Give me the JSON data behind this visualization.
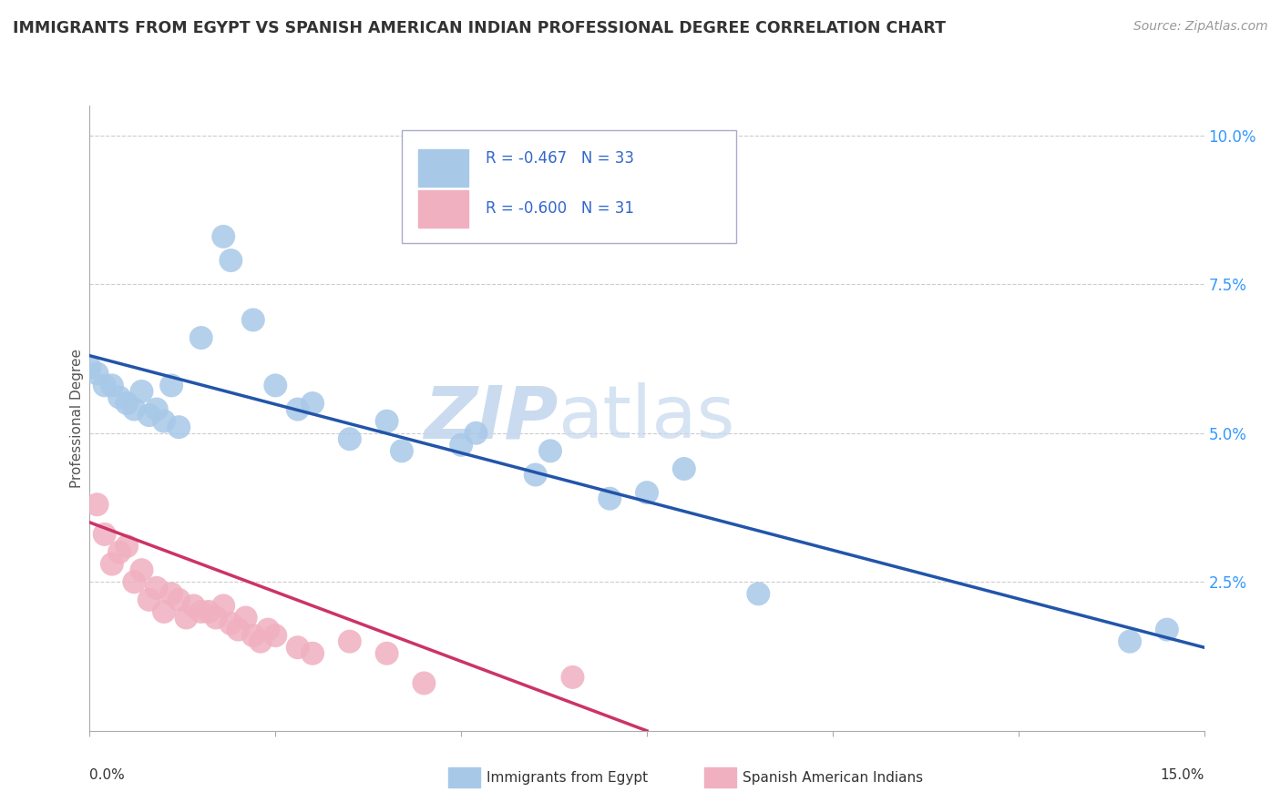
{
  "title": "IMMIGRANTS FROM EGYPT VS SPANISH AMERICAN INDIAN PROFESSIONAL DEGREE CORRELATION CHART",
  "source": "Source: ZipAtlas.com",
  "ylabel": "Professional Degree",
  "yticks_right": [
    0.0,
    0.025,
    0.05,
    0.075,
    0.1
  ],
  "ytick_labels_right": [
    "",
    "2.5%",
    "5.0%",
    "7.5%",
    "10.0%"
  ],
  "xlim": [
    0.0,
    0.15
  ],
  "ylim": [
    0.0,
    0.105
  ],
  "legend_r1": "R = -0.467   N = 33",
  "legend_r2": "R = -0.600   N = 31",
  "legend_label1": "Immigrants from Egypt",
  "legend_label2": "Spanish American Indians",
  "blue_color": "#a8c8e8",
  "pink_color": "#f0b0c0",
  "blue_line_color": "#2255aa",
  "pink_line_color": "#cc3366",
  "blue_dots": [
    [
      0.001,
      0.06
    ],
    [
      0.002,
      0.058
    ],
    [
      0.003,
      0.058
    ],
    [
      0.004,
      0.056
    ],
    [
      0.005,
      0.055
    ],
    [
      0.006,
      0.054
    ],
    [
      0.007,
      0.057
    ],
    [
      0.008,
      0.053
    ],
    [
      0.009,
      0.054
    ],
    [
      0.01,
      0.052
    ],
    [
      0.011,
      0.058
    ],
    [
      0.012,
      0.051
    ],
    [
      0.0,
      0.061
    ],
    [
      0.015,
      0.066
    ],
    [
      0.018,
      0.083
    ],
    [
      0.019,
      0.079
    ],
    [
      0.022,
      0.069
    ],
    [
      0.025,
      0.058
    ],
    [
      0.028,
      0.054
    ],
    [
      0.03,
      0.055
    ],
    [
      0.035,
      0.049
    ],
    [
      0.04,
      0.052
    ],
    [
      0.042,
      0.047
    ],
    [
      0.05,
      0.048
    ],
    [
      0.052,
      0.05
    ],
    [
      0.06,
      0.043
    ],
    [
      0.062,
      0.047
    ],
    [
      0.07,
      0.039
    ],
    [
      0.075,
      0.04
    ],
    [
      0.08,
      0.044
    ],
    [
      0.09,
      0.023
    ],
    [
      0.14,
      0.015
    ],
    [
      0.145,
      0.017
    ]
  ],
  "pink_dots": [
    [
      0.001,
      0.038
    ],
    [
      0.002,
      0.033
    ],
    [
      0.003,
      0.028
    ],
    [
      0.004,
      0.03
    ],
    [
      0.005,
      0.031
    ],
    [
      0.006,
      0.025
    ],
    [
      0.007,
      0.027
    ],
    [
      0.008,
      0.022
    ],
    [
      0.009,
      0.024
    ],
    [
      0.01,
      0.02
    ],
    [
      0.011,
      0.023
    ],
    [
      0.012,
      0.022
    ],
    [
      0.013,
      0.019
    ],
    [
      0.014,
      0.021
    ],
    [
      0.015,
      0.02
    ],
    [
      0.016,
      0.02
    ],
    [
      0.017,
      0.019
    ],
    [
      0.018,
      0.021
    ],
    [
      0.019,
      0.018
    ],
    [
      0.02,
      0.017
    ],
    [
      0.021,
      0.019
    ],
    [
      0.022,
      0.016
    ],
    [
      0.023,
      0.015
    ],
    [
      0.024,
      0.017
    ],
    [
      0.025,
      0.016
    ],
    [
      0.028,
      0.014
    ],
    [
      0.03,
      0.013
    ],
    [
      0.035,
      0.015
    ],
    [
      0.04,
      0.013
    ],
    [
      0.065,
      0.009
    ],
    [
      0.045,
      0.008
    ]
  ],
  "blue_line_x": [
    0.0,
    0.15
  ],
  "blue_line_y": [
    0.063,
    0.014
  ],
  "pink_line_x": [
    0.0,
    0.075
  ],
  "pink_line_y": [
    0.035,
    0.0
  ],
  "watermark_zip": "ZIP",
  "watermark_atlas": "atlas",
  "background_color": "#ffffff",
  "grid_color": "#cccccc"
}
